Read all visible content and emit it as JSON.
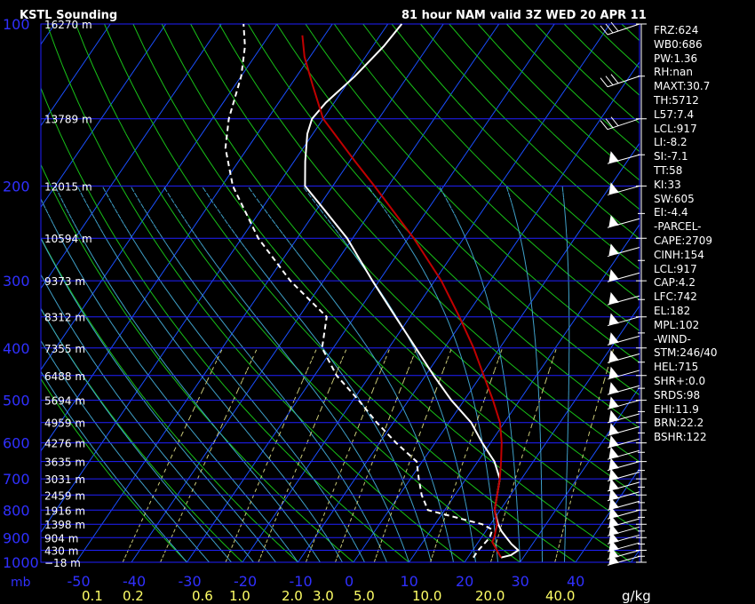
{
  "title": "KSTL Sounding",
  "valid_text": "81 hour NAM valid 3Z WED 20 APR 11",
  "axis_unit_left": "mb",
  "axis_unit_right": "g/kg",
  "stats": [
    "FRZ:624",
    "WB0:686",
    "PW:1.36",
    "RH:nan",
    "MAXT:30.7",
    "TH:5712",
    "L57:7.4",
    "LCL:917",
    "LI:-8.2",
    "SI:-7.1",
    "TT:58",
    "KI:33",
    "SW:605",
    "EI:-4.4",
    "-PARCEL-",
    "CAPE:2709",
    "CINH:154",
    "LCL:917",
    "CAP:4.2",
    "LFC:742",
    "EL:182",
    "MPL:102",
    "-WIND-",
    "STM:246/40",
    "HEL:715",
    "SHR+:0.0",
    "SRDS:98",
    "EHI:11.9",
    "BRN:22.2",
    "BSHR:122"
  ],
  "colors": {
    "background": "#000000",
    "isobar": "#2020ff",
    "isotherm": "#1a4fff",
    "dry_adiabat": "#18c018",
    "moist_adiabat": "#3fa0c8",
    "mixing_ratio": "#c8c878",
    "temperature": "#ffffff",
    "dewpoint": "#ffffff",
    "parcel": "#c00000",
    "tick_label": "#ffff66",
    "axis_label": "#3030ff"
  },
  "chart_data": {
    "type": "line",
    "pressure_scale": "log",
    "pressure_range_mb": [
      1000,
      100
    ],
    "pressure_ticks_mb": [
      100,
      200,
      300,
      400,
      500,
      600,
      700,
      800,
      900,
      1000
    ],
    "temperature_ticks_c": [
      "-50",
      "-40",
      "-30",
      "-20",
      "-10",
      "0",
      "10",
      "20",
      "30",
      "40"
    ],
    "mixing_ratio_ticks_gkg": [
      "0.1",
      "0.2",
      "0.6",
      "1.0",
      "2.0",
      "3.0",
      "5.0",
      "10.0",
      "20.0",
      "40.0"
    ],
    "height_labels": [
      {
        "p": 100,
        "label": "16270 m"
      },
      {
        "p": 150,
        "label": "13789 m"
      },
      {
        "p": 200,
        "label": "12015 m"
      },
      {
        "p": 250,
        "label": "10594 m"
      },
      {
        "p": 300,
        "label": "9373 m"
      },
      {
        "p": 350,
        "label": "8312 m"
      },
      {
        "p": 400,
        "label": "7355 m"
      },
      {
        "p": 450,
        "label": "6488 m"
      },
      {
        "p": 500,
        "label": "5694 m"
      },
      {
        "p": 550,
        "label": "4959 m"
      },
      {
        "p": 600,
        "label": "4276 m"
      },
      {
        "p": 650,
        "label": "3635 m"
      },
      {
        "p": 700,
        "label": "3031 m"
      },
      {
        "p": 750,
        "label": "2459 m"
      },
      {
        "p": 800,
        "label": "1916 m"
      },
      {
        "p": 850,
        "label": "1398 m"
      },
      {
        "p": 900,
        "label": "904 m"
      },
      {
        "p": 950,
        "label": "430 m"
      },
      {
        "p": 1000,
        "label": "−18 m"
      }
    ],
    "series": [
      {
        "kind": "temperature",
        "points": [
          [
            980,
            26
          ],
          [
            970,
            27.5
          ],
          [
            950,
            28.2
          ],
          [
            925,
            26.2
          ],
          [
            900,
            24.5
          ],
          [
            875,
            22.8
          ],
          [
            850,
            21.4
          ],
          [
            800,
            19
          ],
          [
            750,
            17.6
          ],
          [
            700,
            16.1
          ],
          [
            650,
            13
          ],
          [
            600,
            8.5
          ],
          [
            550,
            4
          ],
          [
            500,
            -2.3
          ],
          [
            450,
            -8.5
          ],
          [
            400,
            -15.1
          ],
          [
            350,
            -22.6
          ],
          [
            300,
            -31.2
          ],
          [
            250,
            -41
          ],
          [
            220,
            -49
          ],
          [
            200,
            -55
          ],
          [
            180,
            -58
          ],
          [
            160,
            -61
          ],
          [
            150,
            -62
          ],
          [
            140,
            -61.5
          ],
          [
            125,
            -59.5
          ],
          [
            110,
            -58
          ],
          [
            100,
            -57.5
          ]
        ]
      },
      {
        "kind": "dewpoint",
        "points": [
          [
            980,
            21
          ],
          [
            950,
            21
          ],
          [
            900,
            21.5
          ],
          [
            870,
            21
          ],
          [
            850,
            18.5
          ],
          [
            830,
            14
          ],
          [
            800,
            7
          ],
          [
            750,
            4
          ],
          [
            700,
            1.5
          ],
          [
            650,
            -1
          ],
          [
            600,
            -7
          ],
          [
            550,
            -13
          ],
          [
            500,
            -19
          ],
          [
            450,
            -26
          ],
          [
            400,
            -32
          ],
          [
            350,
            -35
          ],
          [
            300,
            -46
          ],
          [
            250,
            -57
          ],
          [
            200,
            -68
          ],
          [
            170,
            -74
          ],
          [
            150,
            -77
          ],
          [
            125,
            -80
          ],
          [
            110,
            -83
          ],
          [
            100,
            -86
          ]
        ]
      },
      {
        "kind": "parcel",
        "points": [
          [
            980,
            26
          ],
          [
            940,
            23.8
          ],
          [
            917,
            22.5
          ],
          [
            900,
            22.3
          ],
          [
            850,
            21.2
          ],
          [
            800,
            19
          ],
          [
            750,
            17.6
          ],
          [
            700,
            16.1
          ],
          [
            650,
            14.2
          ],
          [
            600,
            12
          ],
          [
            550,
            9.2
          ],
          [
            500,
            5.2
          ],
          [
            450,
            0.5
          ],
          [
            400,
            -4.7
          ],
          [
            350,
            -11.1
          ],
          [
            300,
            -18.8
          ],
          [
            250,
            -29
          ],
          [
            200,
            -42.5
          ],
          [
            180,
            -49
          ],
          [
            150,
            -60
          ],
          [
            130,
            -66
          ],
          [
            115,
            -71
          ],
          [
            105,
            -74
          ]
        ]
      }
    ]
  }
}
